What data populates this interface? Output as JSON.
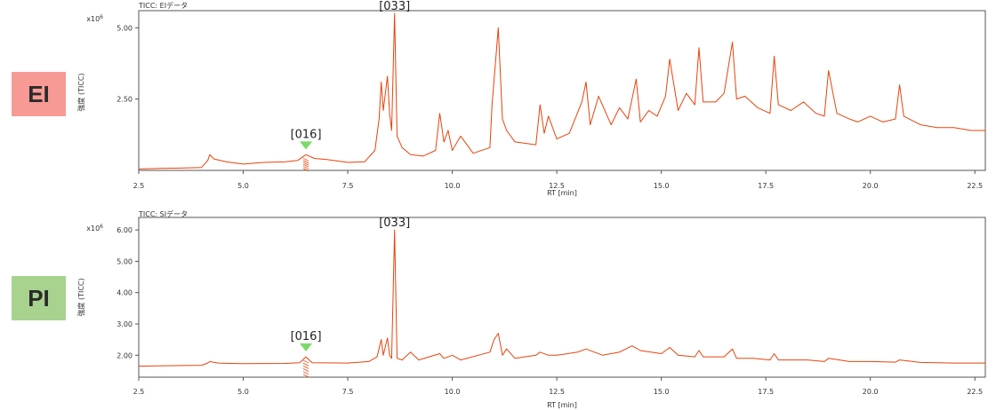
{
  "colors": {
    "trace": "#e8430c",
    "marker": "#7bd96a",
    "ei_badge": "#f79a96",
    "pi_badge": "#a8d38f",
    "axis": "#555555"
  },
  "badges": {
    "ei": "EI",
    "pi": "PI"
  },
  "chart_data": [
    {
      "type": "line",
      "panel_title": "TICC: EIデータ",
      "scale_label": "x10",
      "scale_exp": "6",
      "xlabel": "RT [min]",
      "ylabel": "強度 (TICC)",
      "xlim": [
        2.5,
        22.75
      ],
      "ylim": [
        0,
        5.6
      ],
      "x_ticks": [
        "2.5",
        "5.0",
        "7.5",
        "10.0",
        "12.5",
        "15.0",
        "17.5",
        "20.0",
        "22.5"
      ],
      "y_ticks": [
        "2.50",
        "5.00"
      ],
      "grid": false,
      "annotations": [
        {
          "label": "[016]",
          "x": 6.5
        },
        {
          "label": "[033]",
          "x": 8.62
        }
      ],
      "peak_marker": {
        "x": 6.5
      },
      "series": [
        {
          "x": [
            2.5,
            3.0,
            3.5,
            4.0,
            4.15,
            4.2,
            4.3,
            4.6,
            5.0,
            5.5,
            6.0,
            6.3,
            6.5,
            6.7,
            7.0,
            7.5,
            7.9,
            8.15,
            8.25,
            8.3,
            8.35,
            8.45,
            8.5,
            8.55,
            8.62,
            8.68,
            8.8,
            9.0,
            9.3,
            9.6,
            9.7,
            9.8,
            9.9,
            10.0,
            10.2,
            10.5,
            10.9,
            10.95,
            11.05,
            11.1,
            11.2,
            11.3,
            11.5,
            12.0,
            12.1,
            12.2,
            12.3,
            12.5,
            12.8,
            13.1,
            13.2,
            13.3,
            13.5,
            13.8,
            14.0,
            14.2,
            14.4,
            14.5,
            14.7,
            14.9,
            15.1,
            15.2,
            15.4,
            15.6,
            15.8,
            15.9,
            16.0,
            16.3,
            16.5,
            16.7,
            16.8,
            17.0,
            17.3,
            17.6,
            17.7,
            17.8,
            18.1,
            18.4,
            18.7,
            18.9,
            19.0,
            19.2,
            19.5,
            19.7,
            20.0,
            20.3,
            20.6,
            20.7,
            20.8,
            21.2,
            21.6,
            22.0,
            22.4,
            22.75
          ],
          "y": [
            0.05,
            0.07,
            0.08,
            0.1,
            0.35,
            0.55,
            0.4,
            0.3,
            0.22,
            0.28,
            0.3,
            0.35,
            0.55,
            0.42,
            0.38,
            0.28,
            0.3,
            0.7,
            1.8,
            3.1,
            2.1,
            3.3,
            2.0,
            1.4,
            5.5,
            1.2,
            0.8,
            0.55,
            0.5,
            0.7,
            2.0,
            1.0,
            1.4,
            0.7,
            1.2,
            0.6,
            0.8,
            2.3,
            4.1,
            5.0,
            1.8,
            1.4,
            1.0,
            0.9,
            2.3,
            1.3,
            1.9,
            1.1,
            1.3,
            2.4,
            3.1,
            1.6,
            2.6,
            1.6,
            2.2,
            1.8,
            3.2,
            1.7,
            2.1,
            1.9,
            2.6,
            3.9,
            2.1,
            2.7,
            2.3,
            4.3,
            2.4,
            2.4,
            2.7,
            4.5,
            2.5,
            2.6,
            2.2,
            2.0,
            4.0,
            2.3,
            2.1,
            2.4,
            2.0,
            1.9,
            3.5,
            2.0,
            1.8,
            1.7,
            1.9,
            1.7,
            1.8,
            3.0,
            1.9,
            1.6,
            1.5,
            1.5,
            1.4,
            1.4
          ]
        }
      ]
    },
    {
      "type": "line",
      "panel_title": "TICC: SIデータ",
      "scale_label": "x10",
      "scale_exp": "6",
      "xlabel": "RT [min]",
      "ylabel": "強度 (TICC)",
      "xlim": [
        2.5,
        22.75
      ],
      "ylim": [
        1.3,
        6.4
      ],
      "x_ticks": [
        "2.5",
        "5.0",
        "7.5",
        "10.0",
        "12.5",
        "15.0",
        "17.5",
        "20.0",
        "22.5"
      ],
      "y_ticks": [
        "2.00",
        "3.00",
        "4.00",
        "5.00",
        "6.00"
      ],
      "grid": false,
      "annotations": [
        {
          "label": "[016]",
          "x": 6.5
        },
        {
          "label": "[033]",
          "x": 8.62
        }
      ],
      "peak_marker": {
        "x": 6.5
      },
      "series": [
        {
          "x": [
            2.5,
            3.5,
            4.0,
            4.15,
            4.2,
            4.4,
            5.0,
            6.0,
            6.35,
            6.5,
            6.65,
            7.5,
            8.0,
            8.2,
            8.3,
            8.35,
            8.45,
            8.5,
            8.55,
            8.62,
            8.68,
            8.8,
            9.0,
            9.2,
            9.7,
            9.8,
            10.0,
            10.2,
            10.9,
            11.0,
            11.1,
            11.2,
            11.3,
            11.5,
            12.0,
            12.1,
            12.3,
            12.5,
            13.0,
            13.2,
            13.4,
            13.6,
            14.0,
            14.3,
            14.5,
            15.0,
            15.2,
            15.4,
            15.8,
            15.9,
            16.0,
            16.5,
            16.7,
            16.8,
            17.2,
            17.6,
            17.7,
            17.8,
            18.5,
            18.9,
            19.0,
            19.5,
            20.0,
            20.6,
            20.7,
            21.2,
            22.0,
            22.75
          ],
          "y": [
            1.65,
            1.67,
            1.68,
            1.75,
            1.8,
            1.75,
            1.73,
            1.74,
            1.76,
            1.95,
            1.76,
            1.75,
            1.8,
            1.95,
            2.5,
            2.0,
            2.55,
            2.0,
            1.9,
            6.0,
            1.9,
            1.85,
            2.1,
            1.85,
            2.05,
            1.9,
            2.0,
            1.85,
            2.1,
            2.5,
            2.7,
            2.0,
            2.2,
            1.9,
            2.0,
            2.1,
            2.0,
            2.0,
            2.1,
            2.2,
            2.1,
            2.0,
            2.1,
            2.3,
            2.15,
            2.05,
            2.25,
            2.0,
            1.95,
            2.15,
            1.95,
            1.95,
            2.2,
            1.9,
            1.9,
            1.85,
            2.05,
            1.85,
            1.85,
            1.8,
            1.9,
            1.8,
            1.8,
            1.78,
            1.85,
            1.77,
            1.75,
            1.75
          ]
        }
      ]
    }
  ]
}
